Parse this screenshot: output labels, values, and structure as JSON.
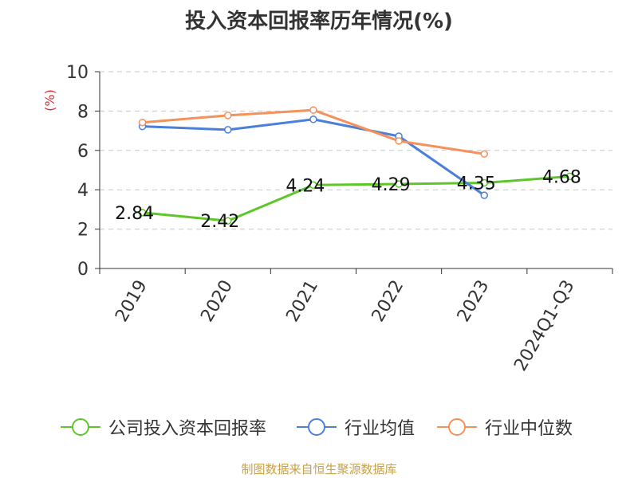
{
  "chart_data": {
    "type": "line",
    "title": "投入资本回报率历年情况(%)",
    "ylabel": "(%)",
    "categories": [
      "2019",
      "2020",
      "2021",
      "2022",
      "2023",
      "2024Q1-Q3"
    ],
    "ylim": [
      0,
      10
    ],
    "yticks": [
      0,
      2,
      4,
      6,
      8,
      10
    ],
    "grid": true,
    "legend_position": "bottom",
    "series": [
      {
        "name": "公司投入资本回报率",
        "color": "#5fc62a",
        "values": [
          2.84,
          2.42,
          4.24,
          4.29,
          4.35,
          4.68
        ],
        "labels": [
          "2.84",
          "2.42",
          "4.24",
          "4.29",
          "4.35",
          "4.68"
        ]
      },
      {
        "name": "行业均值",
        "color": "#4b7fd8",
        "values": [
          7.22,
          7.05,
          7.58,
          6.72,
          3.72,
          null
        ]
      },
      {
        "name": "行业中位数",
        "color": "#f5915b",
        "values": [
          7.42,
          7.78,
          8.05,
          6.48,
          5.82,
          null
        ]
      }
    ]
  },
  "source": "制图数据来自恒生聚源数据库"
}
